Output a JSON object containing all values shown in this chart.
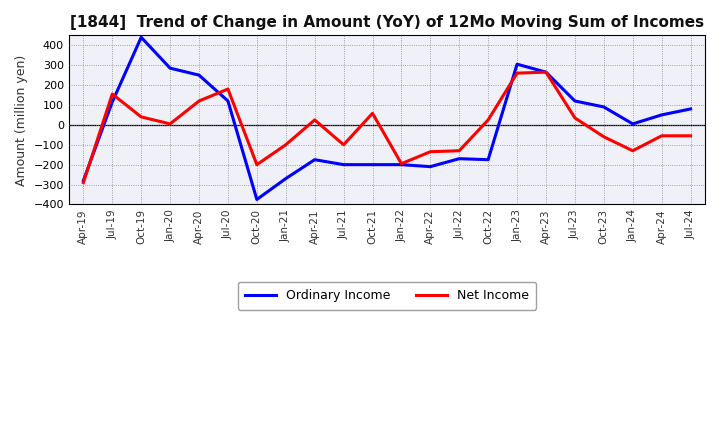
{
  "title": "[1844]  Trend of Change in Amount (YoY) of 12Mo Moving Sum of Incomes",
  "ylabel": "Amount (million yen)",
  "x_labels": [
    "Apr-19",
    "Jul-19",
    "Oct-19",
    "Jan-20",
    "Apr-20",
    "Jul-20",
    "Oct-20",
    "Jan-21",
    "Apr-21",
    "Jul-21",
    "Oct-21",
    "Jan-22",
    "Apr-22",
    "Jul-22",
    "Oct-22",
    "Jan-23",
    "Apr-23",
    "Jul-23",
    "Oct-23",
    "Jan-24",
    "Apr-24",
    "Jul-24"
  ],
  "ordinary_income": [
    -280,
    115,
    440,
    285,
    250,
    120,
    -375,
    -270,
    -175,
    -200,
    -200,
    -200,
    -210,
    -170,
    -175,
    305,
    265,
    120,
    90,
    5,
    50,
    80
  ],
  "net_income": [
    -290,
    155,
    40,
    5,
    120,
    180,
    -200,
    -100,
    25,
    -100,
    58,
    -195,
    -135,
    -130,
    25,
    260,
    265,
    35,
    -60,
    -130,
    -55,
    -55
  ],
  "ordinary_color": "#0000ff",
  "net_color": "#ff0000",
  "ylim": [
    -400,
    450
  ],
  "yticks": [
    -400,
    -300,
    -200,
    -100,
    0,
    100,
    200,
    300,
    400
  ],
  "background_color": "#ffffff",
  "plot_bg_color": "#f0f0f8",
  "grid_color": "#888888",
  "legend_ordinary": "Ordinary Income",
  "legend_net": "Net Income"
}
